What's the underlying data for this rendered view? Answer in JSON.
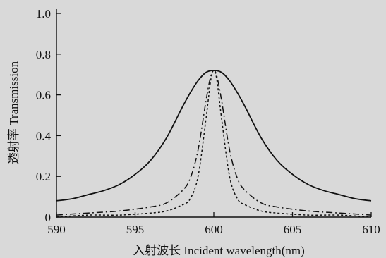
{
  "chart_data": {
    "type": "line",
    "title": "",
    "xlabel": "入射波长 Incident wavelength(nm)",
    "ylabel": "透射率 Transmission",
    "xlim": [
      590,
      610
    ],
    "ylim": [
      0,
      1.0
    ],
    "xticks": [
      590,
      595,
      600,
      605,
      610
    ],
    "yticks": [
      0,
      0.2,
      0.4,
      0.6,
      0.8,
      1.0
    ],
    "xtick_labels": [
      "590",
      "595",
      "600",
      "605",
      "610"
    ],
    "ytick_labels": [
      "0",
      "0.2",
      "0.4",
      "0.6",
      "0.8",
      "1.0"
    ],
    "grid": false,
    "legend": "none",
    "series": [
      {
        "style": "solid",
        "color": "#111111",
        "x": [
          590,
          591,
          592,
          593,
          594,
          595,
          596,
          597,
          598,
          598.5,
          599,
          599.5,
          600,
          600.5,
          601,
          601.5,
          602,
          603,
          604,
          605,
          606,
          607,
          608,
          609,
          610
        ],
        "y": [
          0.08,
          0.09,
          0.11,
          0.13,
          0.16,
          0.21,
          0.28,
          0.39,
          0.54,
          0.61,
          0.67,
          0.71,
          0.72,
          0.71,
          0.67,
          0.61,
          0.54,
          0.39,
          0.28,
          0.21,
          0.16,
          0.13,
          0.11,
          0.09,
          0.08
        ]
      },
      {
        "style": "dash-dot",
        "color": "#111111",
        "x": [
          590,
          592,
          594,
          596,
          597,
          598,
          598.5,
          599,
          599.5,
          599.8,
          600,
          600.2,
          600.5,
          601,
          601.5,
          602,
          603,
          604,
          606,
          608,
          610
        ],
        "y": [
          0.01,
          0.02,
          0.03,
          0.05,
          0.07,
          0.13,
          0.19,
          0.33,
          0.57,
          0.69,
          0.72,
          0.69,
          0.57,
          0.33,
          0.19,
          0.13,
          0.07,
          0.05,
          0.03,
          0.02,
          0.01
        ]
      },
      {
        "style": "dotted",
        "color": "#111111",
        "x": [
          590,
          592,
          594,
          596,
          597,
          598,
          598.5,
          599,
          599.5,
          599.8,
          600,
          600.2,
          600.5,
          601,
          601.5,
          602,
          603,
          604,
          606,
          608,
          610
        ],
        "y": [
          0.0,
          0.01,
          0.01,
          0.02,
          0.03,
          0.06,
          0.09,
          0.2,
          0.48,
          0.67,
          0.72,
          0.67,
          0.48,
          0.2,
          0.09,
          0.06,
          0.03,
          0.02,
          0.01,
          0.01,
          0.0
        ]
      }
    ]
  }
}
